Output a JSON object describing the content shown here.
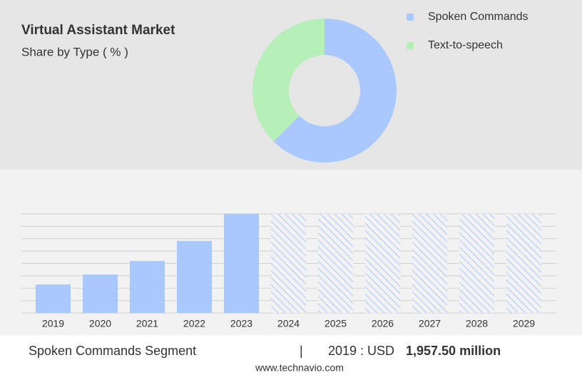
{
  "chart_data": [
    {
      "type": "pie",
      "title": "Virtual Assistant Market",
      "subtitle": "Share by Type ( % )",
      "categories": [
        "Spoken Commands",
        "Text-to-speech"
      ],
      "values": [
        62.5,
        37.5
      ],
      "colors": [
        "#a9c8fe",
        "#b6efb8"
      ],
      "legend": "right"
    },
    {
      "type": "bar",
      "categories": [
        "2019",
        "2020",
        "2021",
        "2022",
        "2023",
        "2024",
        "2025",
        "2026",
        "2027",
        "2028",
        "2029"
      ],
      "values": [
        1957.5,
        2643,
        3572,
        4943,
        6802,
        null,
        null,
        null,
        null,
        null,
        null
      ],
      "color": "#a9c8fe",
      "ylim": [
        0,
        6802
      ],
      "grid": true
    }
  ],
  "footer": {
    "segment": "Spoken Commands Segment",
    "separator": "|",
    "year_label": "2019 : USD",
    "value": "1,957.50 million",
    "site": "www.technavio.com"
  }
}
